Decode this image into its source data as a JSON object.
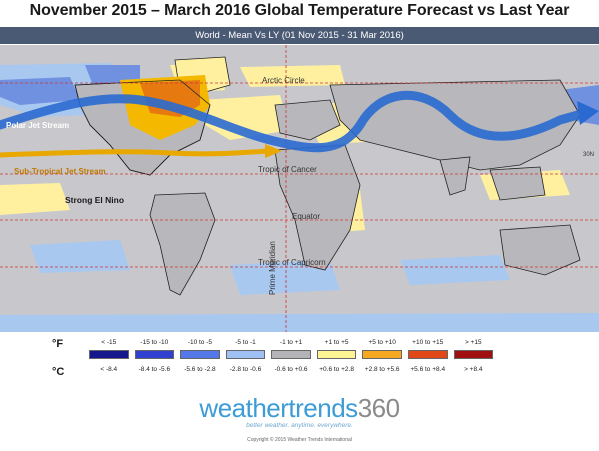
{
  "title": "November 2015 – March 2016 Global Temperature Forecast vs Last Year",
  "subtitle": "World - Mean Vs LY (01 Nov 2015 - 31 Mar 2016)",
  "map": {
    "labels": {
      "arctic_circle": "Arctic Circle",
      "tropic_cancer": "Tropic of Cancer",
      "equator": "Equator",
      "tropic_capricorn": "Tropic of Capricorn",
      "prime_meridian": "Prime Meridian",
      "latitude_marker": "30N",
      "polar_jet": "Polar Jet Stream",
      "subtropical_jet": "Sub-Tropical Jet Stream",
      "el_nino": "Strong El Nino"
    },
    "colors": {
      "ocean": "#c8c8cc",
      "land_neutral": "#b8b8bc",
      "cold_light": "#a8c8f0",
      "cold_medium": "#7090e0",
      "warm_light": "#fff0a0",
      "warm_medium": "#f5b800",
      "warm_strong": "#e67a10",
      "polar_jet": "#2a6ad0",
      "subtropical_jet": "#e8a800"
    }
  },
  "legend": {
    "fahrenheit_unit": "°F",
    "celsius_unit": "°C",
    "fahrenheit": [
      "< -15",
      "-15 to -10",
      "-10 to -5",
      "-5 to -1",
      "-1 to +1",
      "+1 to +5",
      "+5 to +10",
      "+10 to +15",
      "> +15"
    ],
    "celsius": [
      "< -8.4",
      "-8.4 to -5.6",
      "-5.6 to -2.8",
      "-2.8 to -0.6",
      "-0.6 to +0.6",
      "+0.6 to +2.8",
      "+2.8 to +5.6",
      "+5.6 to +8.4",
      "> +8.4"
    ],
    "colors": [
      "#14188c",
      "#3040d0",
      "#5478e8",
      "#9ec0f4",
      "#b4b4b8",
      "#fff494",
      "#f5a820",
      "#e04818",
      "#a01010"
    ]
  },
  "logo": {
    "name": "weathertrends",
    "number": "360",
    "tagline": "better weather. anytime. everywhere.",
    "copyright": "Copyright © 2015 Weather Trends International"
  }
}
